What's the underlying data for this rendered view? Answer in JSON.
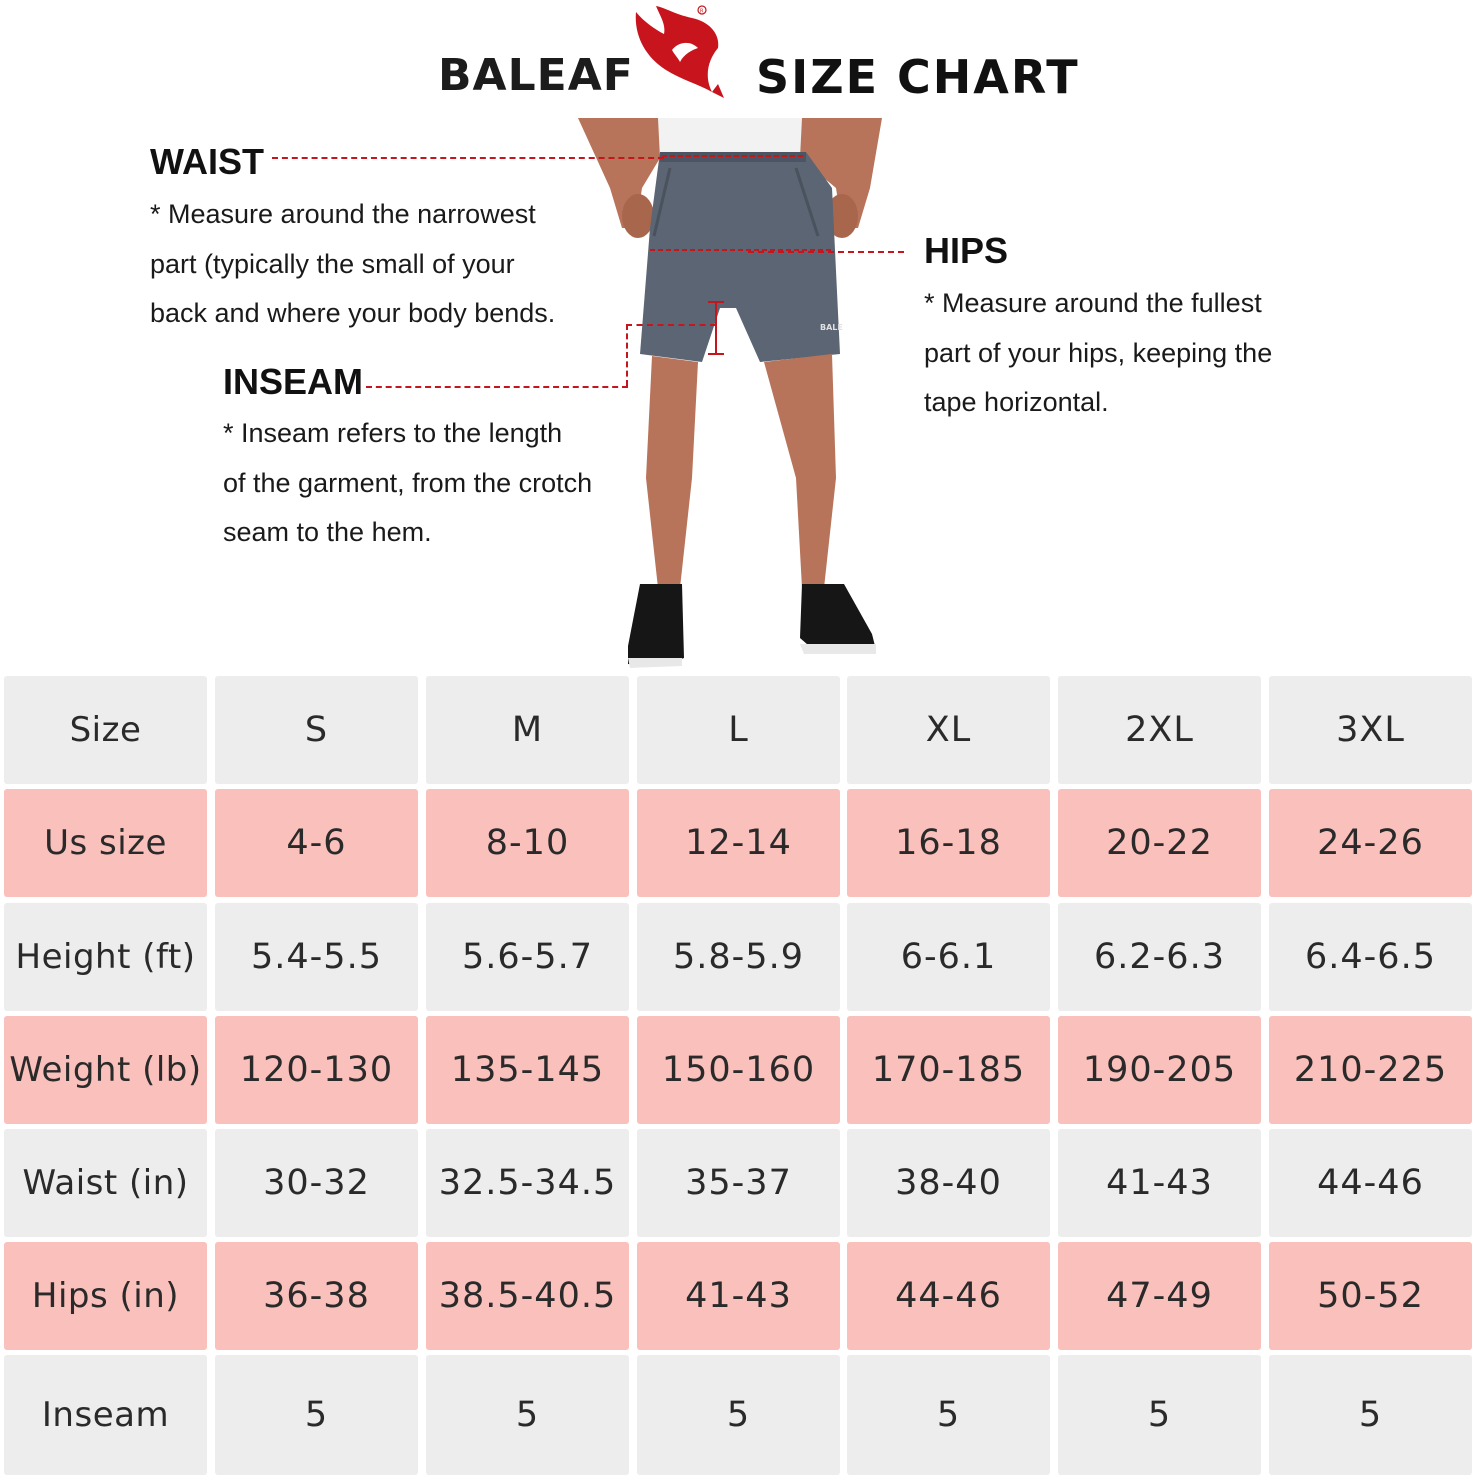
{
  "header": {
    "brand_name_a": "BA",
    "brand_name_b": "LEAF",
    "title": "SIZE  CHART",
    "accent_color": "#c8141c"
  },
  "annotations": {
    "waist": {
      "title": "WAIST",
      "lines": [
        "* Measure around the narrowest",
        "part (typically the small of your",
        "back and where your body bends."
      ]
    },
    "hips": {
      "title": "HIPS",
      "lines": [
        "* Measure around the fullest",
        "part of your hips, keeping the",
        "tape horizontal."
      ]
    },
    "inseam": {
      "title": "INSEAM",
      "lines": [
        "* Inseam refers to the length",
        "of the garment, from the crotch",
        "seam to the hem."
      ]
    }
  },
  "table": {
    "colors": {
      "grey": "#ededed",
      "pink": "#fac0bb"
    },
    "rows": [
      {
        "label": "Size",
        "values": [
          "S",
          "M",
          "L",
          "XL",
          "2XL",
          "3XL"
        ]
      },
      {
        "label": "Us size",
        "values": [
          "4-6",
          "8-10",
          "12-14",
          "16-18",
          "20-22",
          "24-26"
        ]
      },
      {
        "label": "Height (ft)",
        "values": [
          "5.4-5.5",
          "5.6-5.7",
          "5.8-5.9",
          "6-6.1",
          "6.2-6.3",
          "6.4-6.5"
        ]
      },
      {
        "label": "Weight (lb)",
        "values": [
          "120-130",
          "135-145",
          "150-160",
          "170-185",
          "190-205",
          "210-225"
        ]
      },
      {
        "label": "Waist (in)",
        "values": [
          "30-32",
          "32.5-34.5",
          "35-37",
          "38-40",
          "41-43",
          "44-46"
        ]
      },
      {
        "label": "Hips (in)",
        "values": [
          "36-38",
          "38.5-40.5",
          "41-43",
          "44-46",
          "47-49",
          "50-52"
        ]
      },
      {
        "label": "Inseam",
        "values": [
          "5",
          "5",
          "5",
          "5",
          "5",
          "5"
        ]
      }
    ]
  }
}
